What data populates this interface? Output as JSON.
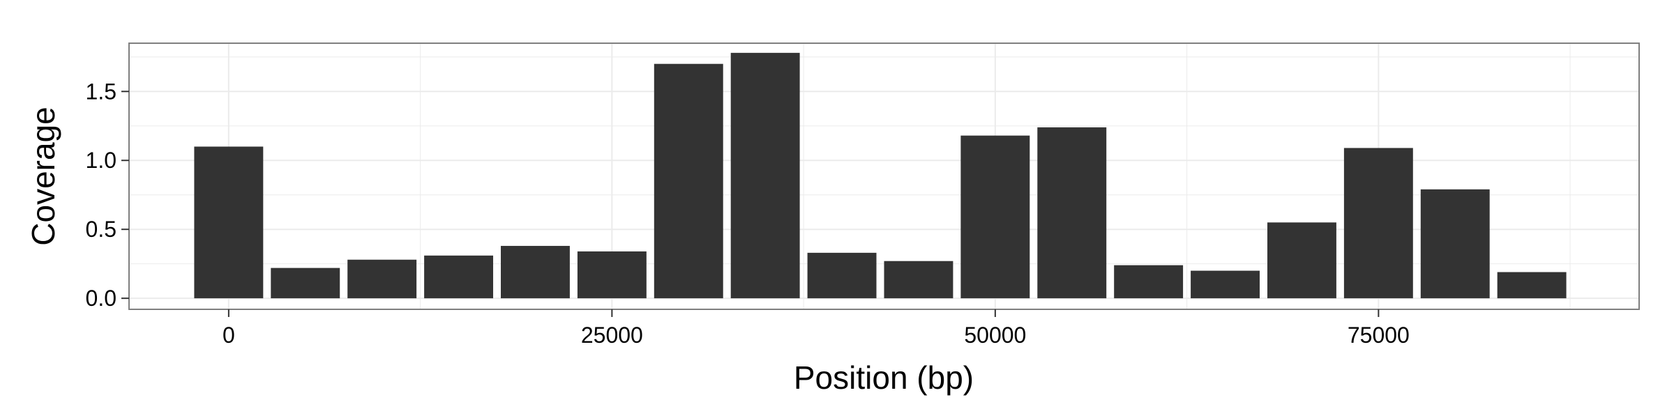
{
  "chart_data": {
    "type": "bar",
    "title": "",
    "xlabel": "Position (bp)",
    "ylabel": "Coverage",
    "bin_width": 5000,
    "x": [
      0,
      5000,
      10000,
      15000,
      20000,
      25000,
      30000,
      35000,
      40000,
      45000,
      50000,
      55000,
      60000,
      65000,
      70000,
      75000,
      80000,
      85000
    ],
    "values": [
      1.1,
      0.22,
      0.28,
      0.31,
      0.38,
      0.34,
      1.7,
      1.78,
      0.33,
      0.27,
      1.18,
      1.24,
      0.24,
      0.2,
      0.55,
      1.09,
      0.79,
      0.19
    ],
    "xlim": [
      -6500,
      92000
    ],
    "ylim": [
      -0.08,
      1.85
    ],
    "x_ticks": [
      0,
      25000,
      50000,
      75000
    ],
    "y_ticks": [
      0.0,
      0.5,
      1.0,
      1.5
    ],
    "x_tick_labels": [
      "0",
      "25000",
      "50000",
      "75000"
    ],
    "y_tick_labels": [
      "0.0",
      "0.5",
      "1.0",
      "1.5"
    ],
    "grid": true,
    "legend": "none",
    "bar_color": "#333333",
    "grid_color": "#ebebeb",
    "border_color": "#7f7f7f"
  }
}
